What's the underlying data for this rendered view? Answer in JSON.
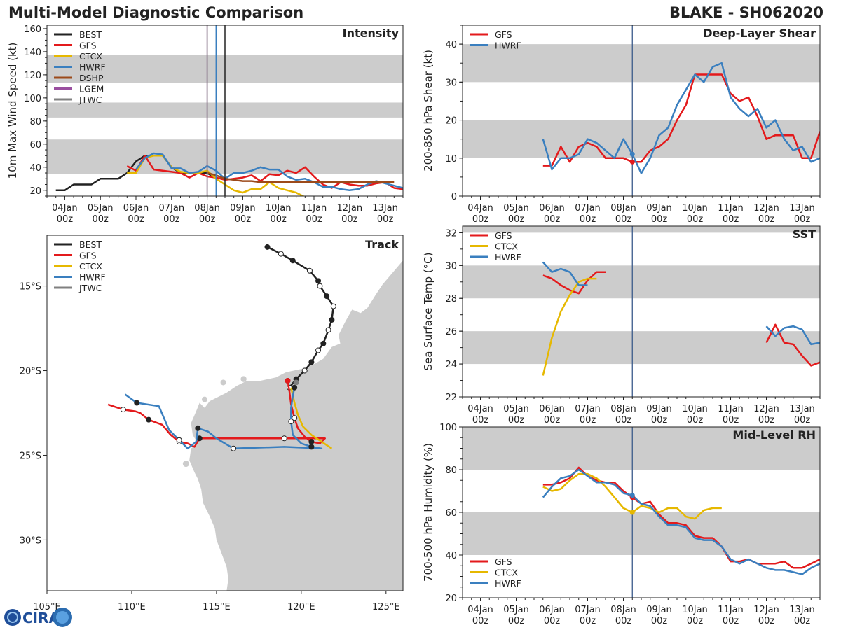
{
  "header": {
    "title_left": "Multi-Model Diagnostic Comparison",
    "title_right": "BLAKE - SH062020"
  },
  "colors": {
    "BEST": "#222222",
    "GFS": "#e31a1c",
    "CTCX": "#e6b800",
    "HWRF": "#3a7fbf",
    "DSHP": "#9c4a1a",
    "LGEM": "#9a4fa0",
    "JTWC": "#808080",
    "band": "#cccccc",
    "land": "#cccccc",
    "marker_line": "#3a5a8a"
  },
  "logo": {
    "text": "CIRA"
  },
  "time_axis": {
    "labels": [
      {
        "day": "04Jan",
        "hour": "00z",
        "t": 0
      },
      {
        "day": "05Jan",
        "hour": "00z",
        "t": 24
      },
      {
        "day": "06Jan",
        "hour": "00z",
        "t": 48
      },
      {
        "day": "07Jan",
        "hour": "00z",
        "t": 72
      },
      {
        "day": "08Jan",
        "hour": "00z",
        "t": 96
      },
      {
        "day": "09Jan",
        "hour": "00z",
        "t": 120
      },
      {
        "day": "10Jan",
        "hour": "00z",
        "t": 144
      },
      {
        "day": "11Jan",
        "hour": "00z",
        "t": 168
      },
      {
        "day": "12Jan",
        "hour": "00z",
        "t": 192
      },
      {
        "day": "13Jan",
        "hour": "00z",
        "t": 216
      }
    ],
    "range_hours": [
      -12,
      228
    ],
    "current_time_hours": 102
  },
  "chart_data": [
    {
      "id": "intensity",
      "type": "line",
      "title": "Intensity",
      "ylabel": "10m Max Wind Speed (kt)",
      "ylim": [
        15,
        163
      ],
      "yticks": [
        20,
        40,
        60,
        80,
        100,
        120,
        140,
        160
      ],
      "bands": [
        [
          34,
          64
        ],
        [
          83,
          96
        ],
        [
          113,
          137
        ]
      ],
      "vlines": [
        {
          "name": "LGEM",
          "t": 96
        },
        {
          "name": "JTWC",
          "t": 96
        },
        {
          "name": "HWRF",
          "t": 102
        },
        {
          "name": "BEST",
          "t": 108
        }
      ],
      "legend": [
        "BEST",
        "GFS",
        "CTCX",
        "HWRF",
        "DSHP",
        "LGEM",
        "JTWC"
      ],
      "series": [
        {
          "name": "BEST",
          "t": [
            -6,
            0,
            6,
            12,
            18,
            24,
            30,
            36,
            42,
            48,
            54,
            60,
            66,
            72,
            78,
            84,
            90,
            96,
            102
          ],
          "v": [
            20,
            20,
            25,
            25,
            25,
            30,
            30,
            30,
            35,
            45,
            50,
            50,
            50,
            40,
            35,
            35,
            35,
            35,
            30
          ]
        },
        {
          "name": "GFS",
          "t": [
            42,
            48,
            54,
            60,
            66,
            72,
            78,
            84,
            90,
            96,
            102,
            108,
            114,
            120,
            126,
            132,
            138,
            144,
            150,
            156,
            162,
            168,
            174,
            180,
            186,
            192,
            198,
            204,
            210,
            216,
            222,
            228
          ],
          "v": [
            41,
            37,
            50,
            38,
            37,
            36,
            35,
            31,
            35,
            32,
            31,
            29,
            30,
            31,
            33,
            28,
            34,
            33,
            37,
            35,
            40,
            32,
            25,
            22,
            27,
            25,
            24,
            24,
            26,
            27,
            22,
            21
          ]
        },
        {
          "name": "CTCX",
          "t": [
            42,
            48,
            54,
            60,
            66,
            72,
            78,
            84,
            90,
            96,
            102,
            108,
            114,
            120,
            126,
            132,
            138,
            144,
            150,
            156,
            162,
            168
          ],
          "v": [
            35,
            35,
            48,
            50,
            50,
            40,
            36,
            35,
            35,
            37,
            30,
            25,
            20,
            18,
            21,
            21,
            27,
            22,
            20,
            18,
            14,
            14
          ]
        },
        {
          "name": "HWRF",
          "t": [
            48,
            54,
            60,
            66,
            72,
            78,
            84,
            90,
            96,
            102,
            108,
            114,
            120,
            126,
            132,
            138,
            144,
            150,
            156,
            162,
            168,
            174,
            180,
            186,
            192,
            198,
            204,
            210,
            216,
            222,
            228
          ],
          "v": [
            38,
            48,
            52,
            51,
            39,
            39,
            35,
            36,
            41,
            37,
            30,
            35,
            35,
            37,
            40,
            38,
            38,
            32,
            29,
            30,
            27,
            23,
            23,
            21,
            20,
            21,
            25,
            28,
            26,
            24,
            22
          ]
        },
        {
          "name": "DSHP",
          "t": [
            96,
            102,
            108,
            114,
            120,
            126,
            132,
            138,
            144,
            150,
            156,
            162,
            168,
            174,
            180,
            186,
            192,
            198,
            204,
            210,
            216,
            222
          ],
          "v": [
            35,
            33,
            30,
            29,
            28,
            28,
            27,
            27,
            27,
            27,
            27,
            27,
            27,
            27,
            27,
            27,
            27,
            27,
            27,
            27,
            27,
            27
          ]
        }
      ]
    },
    {
      "id": "track",
      "type": "scatter",
      "title": "Track",
      "xlabel_ticks": [
        "105°E",
        "110°E",
        "115°E",
        "120°E",
        "125°E"
      ],
      "ylabel_ticks": [
        "15°S",
        "20°S",
        "25°S",
        "30°S"
      ],
      "lon_range": [
        105,
        126
      ],
      "lat_range": [
        -33,
        -12
      ],
      "legend": [
        "BEST",
        "GFS",
        "CTCX",
        "HWRF",
        "JTWC"
      ],
      "series": [
        {
          "name": "BEST",
          "lon": [
            118.0,
            118.8,
            119.5,
            120.5,
            121.0,
            121.1,
            121.5,
            121.9,
            121.8,
            121.6,
            121.3,
            121.0,
            120.6,
            120.2,
            119.7,
            119.3
          ],
          "lat": [
            -12.7,
            -13.1,
            -13.5,
            -14.1,
            -14.7,
            -15.0,
            -15.6,
            -16.2,
            -17.0,
            -17.6,
            -18.4,
            -18.8,
            -19.5,
            -20.0,
            -20.5,
            -21.0
          ]
        },
        {
          "name": "GFS",
          "lon": [
            119.2,
            119.3,
            119.4,
            119.6,
            119.8,
            120.2,
            120.6,
            121.1,
            121.4,
            119.0,
            117.0,
            115.0,
            114.0,
            113.7,
            113.3,
            112.8,
            112.3,
            111.8,
            111.0,
            110.5,
            110.2,
            109.5,
            108.6
          ],
          "lat": [
            -20.6,
            -21.2,
            -22.0,
            -22.8,
            -23.4,
            -23.9,
            -24.2,
            -24.3,
            -24.0,
            -24.0,
            -24.0,
            -24.0,
            -24.0,
            -24.5,
            -24.3,
            -24.2,
            -23.8,
            -23.2,
            -22.9,
            -22.5,
            -22.4,
            -22.3,
            -22.0
          ]
        },
        {
          "name": "CTCX",
          "lon": [
            119.4,
            119.6,
            119.8,
            120.1,
            120.6,
            121.2,
            121.8
          ],
          "lat": [
            -21.0,
            -21.9,
            -22.6,
            -23.3,
            -23.8,
            -24.2,
            -24.6
          ]
        },
        {
          "name": "HWRF",
          "lon": [
            119.6,
            119.5,
            119.4,
            119.4,
            119.5,
            120.0,
            120.6,
            121.2,
            119.0,
            116.0,
            115.0,
            114.5,
            113.9,
            113.8,
            113.3,
            112.8,
            112.2,
            111.6,
            110.3,
            109.6
          ],
          "lat": [
            -21.0,
            -21.5,
            -22.2,
            -23.0,
            -23.8,
            -24.3,
            -24.5,
            -24.6,
            -24.5,
            -24.6,
            -24.0,
            -23.6,
            -23.4,
            -24.2,
            -24.6,
            -24.1,
            -23.5,
            -22.1,
            -21.9,
            -21.4
          ]
        },
        {
          "name": "JTWC",
          "lon": [
            119.7
          ],
          "lat": [
            -20.7
          ]
        }
      ]
    },
    {
      "id": "shear",
      "type": "line",
      "title": "Deep-Layer Shear",
      "ylabel": "200-850 hPa Shear (kt)",
      "ylim": [
        0,
        45
      ],
      "yticks": [
        0,
        10,
        20,
        30,
        40
      ],
      "bands": [
        [
          10,
          20
        ],
        [
          30,
          40
        ]
      ],
      "legend": [
        "GFS",
        "HWRF"
      ],
      "series": [
        {
          "name": "GFS",
          "t": [
            42,
            48,
            54,
            60,
            66,
            72,
            78,
            84,
            90,
            96,
            102,
            108,
            114,
            120,
            126,
            132,
            138,
            144,
            150,
            156,
            162,
            168,
            174,
            180,
            186,
            192,
            198,
            204,
            210,
            216,
            222,
            228
          ],
          "v": [
            8,
            8,
            13,
            9,
            13,
            14,
            13,
            10,
            10,
            10,
            9,
            9,
            12,
            13,
            15,
            20,
            24,
            32,
            32,
            32,
            32,
            27,
            25,
            26,
            21,
            15,
            16,
            16,
            16,
            10,
            10,
            17
          ]
        },
        {
          "name": "HWRF",
          "t": [
            42,
            48,
            54,
            60,
            66,
            72,
            78,
            84,
            90,
            96,
            102,
            108,
            114,
            120,
            126,
            132,
            138,
            144,
            150,
            156,
            162,
            168,
            174,
            180,
            186,
            192,
            198,
            204,
            210,
            216,
            222,
            228
          ],
          "v": [
            15,
            7,
            10,
            10,
            11,
            15,
            14,
            12,
            10,
            15,
            11,
            6,
            10,
            16,
            18,
            24,
            28,
            32,
            30,
            34,
            35,
            26,
            23,
            21,
            23,
            18,
            20,
            15,
            12,
            13,
            9,
            10
          ]
        }
      ]
    },
    {
      "id": "sst",
      "type": "line",
      "title": "SST",
      "ylabel": "Sea Surface Temp (°C)",
      "ylim": [
        22,
        32.4
      ],
      "yticks": [
        22,
        24,
        26,
        28,
        30,
        32
      ],
      "bands": [
        [
          24,
          26
        ],
        [
          28,
          30
        ],
        [
          32,
          32.4
        ]
      ],
      "legend": [
        "GFS",
        "CTCX",
        "HWRF"
      ],
      "series": [
        {
          "name": "GFS",
          "t": [
            42,
            48,
            54,
            60,
            66,
            72,
            78,
            84
          ],
          "v": [
            29.4,
            29.2,
            28.8,
            28.5,
            28.3,
            29.1,
            29.6,
            29.6
          ]
        },
        {
          "name": "GFS",
          "t": [
            192,
            198,
            204,
            210,
            216,
            222,
            228
          ],
          "v": [
            25.3,
            26.4,
            25.3,
            25.2,
            24.5,
            23.9,
            24.1
          ]
        },
        {
          "name": "CTCX",
          "t": [
            42,
            48,
            54,
            60,
            66,
            72,
            78
          ],
          "v": [
            23.3,
            25.6,
            27.2,
            28.2,
            29.0,
            29.2,
            29.2
          ]
        },
        {
          "name": "HWRF",
          "t": [
            42,
            48,
            54,
            60,
            66,
            72
          ],
          "v": [
            30.2,
            29.6,
            29.8,
            29.6,
            28.8,
            28.8
          ]
        },
        {
          "name": "HWRF",
          "t": [
            192,
            198,
            204,
            210,
            216,
            222,
            228
          ],
          "v": [
            26.3,
            25.7,
            26.2,
            26.3,
            26.1,
            25.2,
            25.3
          ]
        }
      ]
    },
    {
      "id": "rh",
      "type": "line",
      "title": "Mid-Level RH",
      "ylabel": "700-500 hPa Humidity (%)",
      "ylim": [
        20,
        100
      ],
      "yticks": [
        20,
        40,
        60,
        80,
        100
      ],
      "bands": [
        [
          40,
          60
        ],
        [
          80,
          100
        ]
      ],
      "legend": [
        "GFS",
        "CTCX",
        "HWRF"
      ],
      "series": [
        {
          "name": "GFS",
          "t": [
            42,
            48,
            54,
            60,
            66,
            72,
            78,
            84,
            90,
            96,
            102,
            108,
            114,
            120,
            126,
            132,
            138,
            144,
            150,
            156,
            162,
            168,
            174,
            180,
            186,
            192,
            198,
            204,
            210,
            216,
            222,
            228
          ],
          "v": [
            73,
            73,
            74,
            76,
            81,
            77,
            75,
            74,
            74,
            70,
            67,
            64,
            65,
            59,
            55,
            55,
            54,
            49,
            48,
            48,
            44,
            37,
            37,
            38,
            36,
            36,
            36,
            37,
            34,
            34,
            36,
            38
          ]
        },
        {
          "name": "CTCX",
          "t": [
            42,
            48,
            54,
            60,
            66,
            72,
            78,
            84,
            90,
            96,
            102,
            108,
            114,
            120,
            126,
            132,
            138,
            144,
            150,
            156,
            162
          ],
          "v": [
            72,
            70,
            71,
            75,
            78,
            78,
            76,
            72,
            67,
            62,
            60,
            63,
            62,
            60,
            62,
            62,
            58,
            57,
            61,
            62,
            62
          ]
        },
        {
          "name": "HWRF",
          "t": [
            42,
            48,
            54,
            60,
            66,
            72,
            78,
            84,
            90,
            96,
            102,
            108,
            114,
            120,
            126,
            132,
            138,
            144,
            150,
            156,
            162,
            168,
            174,
            180,
            186,
            192,
            198,
            204,
            210,
            216,
            222,
            228
          ],
          "v": [
            67,
            72,
            76,
            77,
            80,
            77,
            74,
            74,
            73,
            69,
            68,
            64,
            63,
            58,
            54,
            54,
            53,
            48,
            47,
            47,
            44,
            38,
            36,
            38,
            36,
            34,
            33,
            33,
            32,
            31,
            34,
            36
          ]
        }
      ]
    }
  ]
}
